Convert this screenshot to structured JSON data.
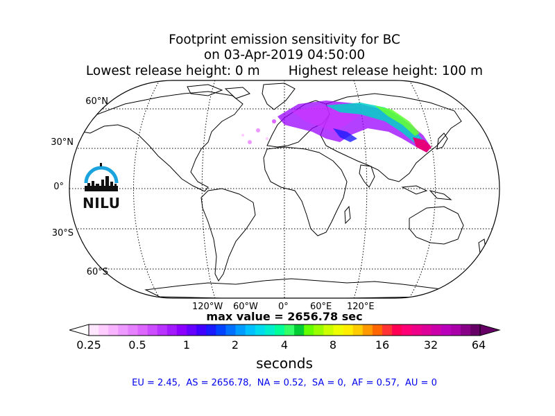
{
  "title": {
    "line1": "Footprint emission sensitivity for BC",
    "line2": "on 03-Apr-2019 04:50:00",
    "line3": "Lowest release height: 0 m       Highest release height: 100 m"
  },
  "map": {
    "projection": "robinson",
    "grid": true,
    "lat_labels": [
      "60°N",
      "30°N",
      "0°",
      "30°S",
      "60°S"
    ],
    "lon_labels": [
      "120°W",
      "60°W",
      "0°",
      "60°E",
      "120°E"
    ],
    "plume_color_high": "#e6007a",
    "plume_color_mid": "#00d2c8",
    "plume_color_low": "#9900ff"
  },
  "logo": {
    "text": "NILU",
    "accent": "#1aa3dc"
  },
  "max_value": "max value = 2656.78 sec",
  "colorbar": {
    "tick_labels": [
      "0.25",
      "0.5",
      "1",
      "2",
      "4",
      "8",
      "16",
      "32",
      "64"
    ],
    "unit_label": "seconds",
    "colors": [
      "#ffe6ff",
      "#ffccff",
      "#f7b3ff",
      "#ee99ff",
      "#e680ff",
      "#dd66ff",
      "#cc4dff",
      "#b833ff",
      "#a31aff",
      "#8c00ff",
      "#6600ff",
      "#4000ff",
      "#1a1aff",
      "#0044ff",
      "#0070ff",
      "#009cff",
      "#00c0ff",
      "#00dcee",
      "#00eecc",
      "#00ff99",
      "#33ff66",
      "#00cc33",
      "#66ff00",
      "#99ff00",
      "#ccff00",
      "#eeff00",
      "#ffee00",
      "#ffcc00",
      "#ff9900",
      "#ff6600",
      "#ff3333",
      "#ff0055",
      "#ff0077",
      "#ee0088",
      "#dd0099",
      "#cc00aa",
      "#bb00bb",
      "#aa00aa",
      "#880088",
      "#660066"
    ]
  },
  "stats": "EU = 2.45,  AS = 2656.78,  NA = 0.52,  SA = 0,  AF = 0.57,  AU = 0"
}
